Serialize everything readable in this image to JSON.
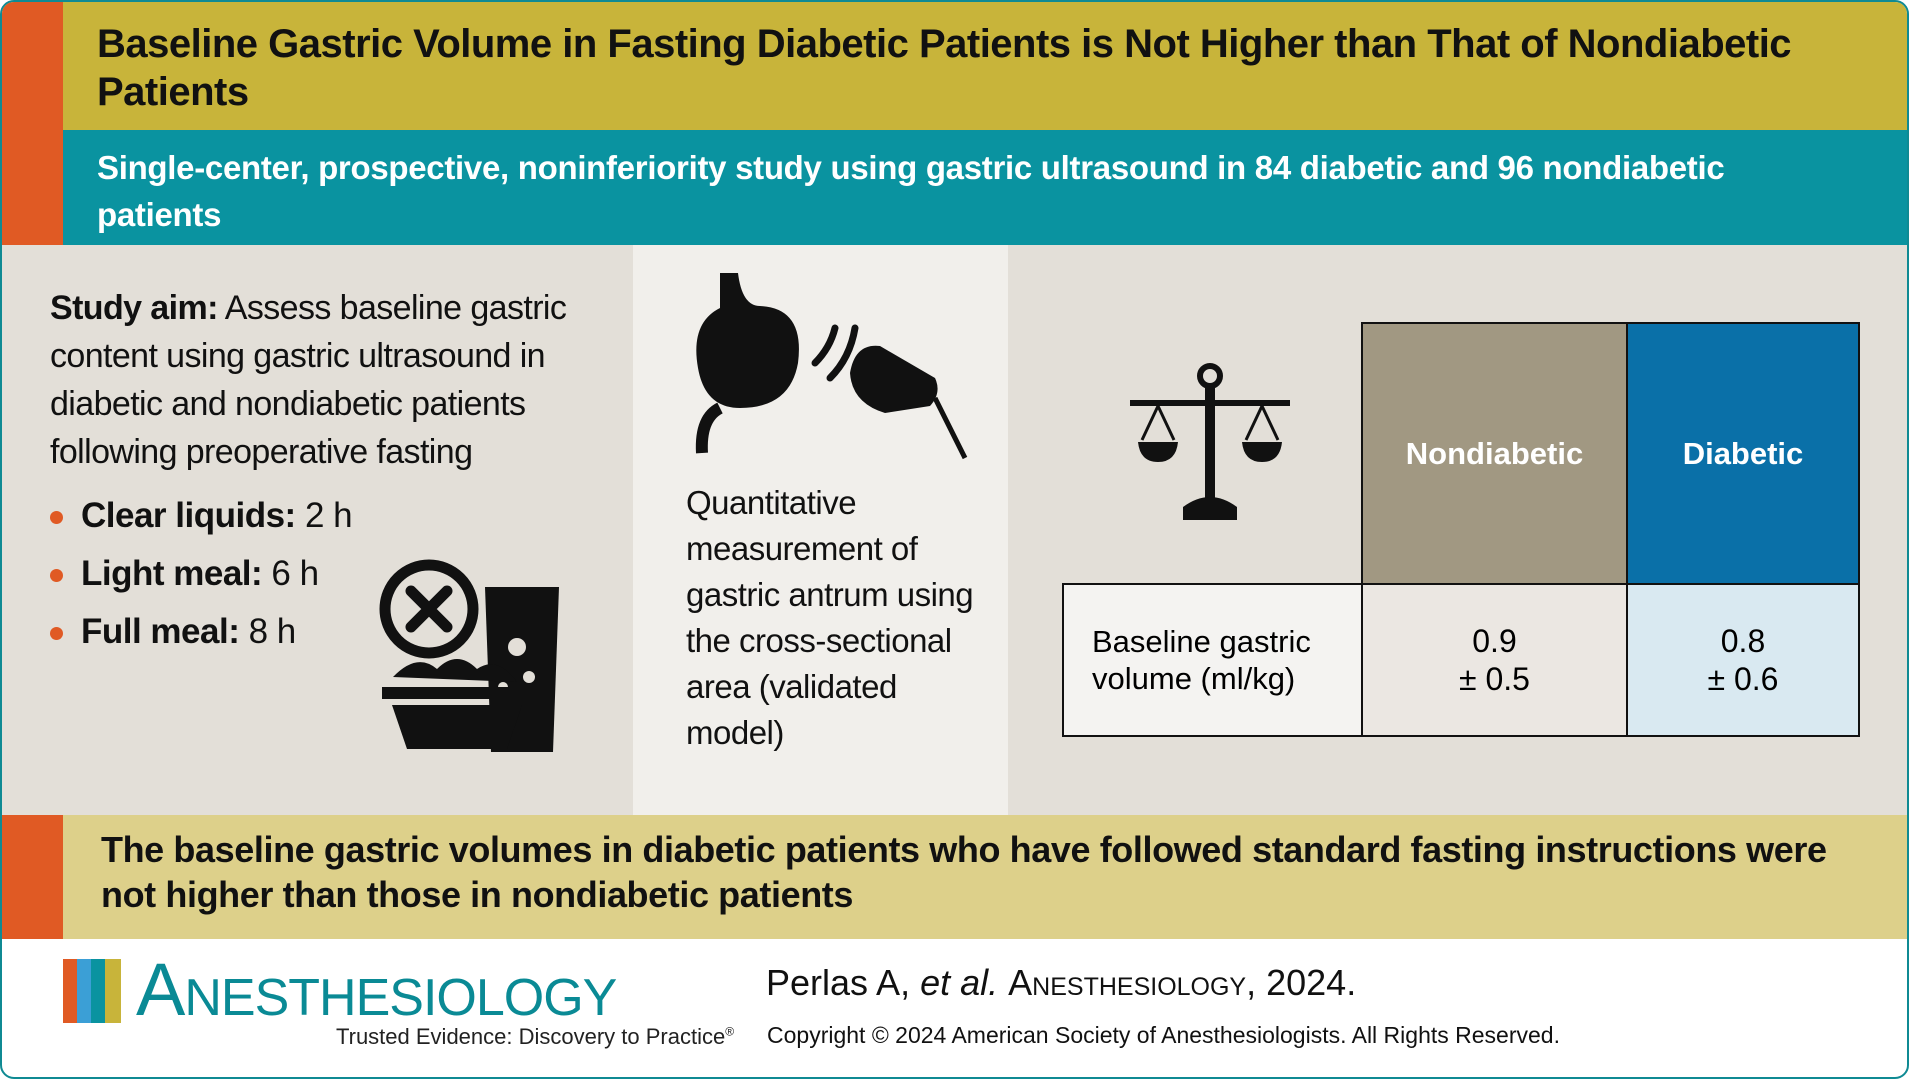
{
  "header": {
    "title": "Baseline Gastric Volume in Fasting Diabetic Patients is Not Higher than That of Nondiabetic Patients",
    "subtitle": "Single-center, prospective, noninferiority study using gastric ultrasound in 84 diabetic and 96 nondiabetic patients"
  },
  "study_aim": {
    "label": "Study aim:",
    "text": "Assess baseline gastric content using gastric ultrasound in diabetic and nondiabetic patients following preoperative fasting"
  },
  "fasting": [
    {
      "label": "Clear liquids:",
      "value": "2 h"
    },
    {
      "label": "Light meal:",
      "value": "6 h"
    },
    {
      "label": "Full meal:",
      "value": "8 h"
    }
  ],
  "method": "Quantitative measurement of gastric antrum using the cross-sectional area (validated model)",
  "table": {
    "columns": [
      "Nondiabetic",
      "Diabetic"
    ],
    "rows": [
      {
        "label": "Baseline gastric volume (ml/kg)",
        "cells": [
          {
            "mean": "0.9",
            "sd": "± 0.5"
          },
          {
            "mean": "0.8",
            "sd": "± 0.6"
          }
        ]
      }
    ]
  },
  "conclusion": "The baseline gastric volumes in diabetic patients who have followed standard fasting instructions were not higher than those in nondiabetic patients",
  "footer": {
    "journal": "Anesthesiology",
    "tagline": "Trusted Evidence: Discovery to Practice",
    "trademark": "®",
    "citation": {
      "authors": "Perlas A,",
      "etal": "et al.",
      "journal": "Anesthesiology",
      "year": ", 2024."
    },
    "copyright": "Copyright © 2024 American Society of Anesthesiologists. All Rights Reserved."
  }
}
